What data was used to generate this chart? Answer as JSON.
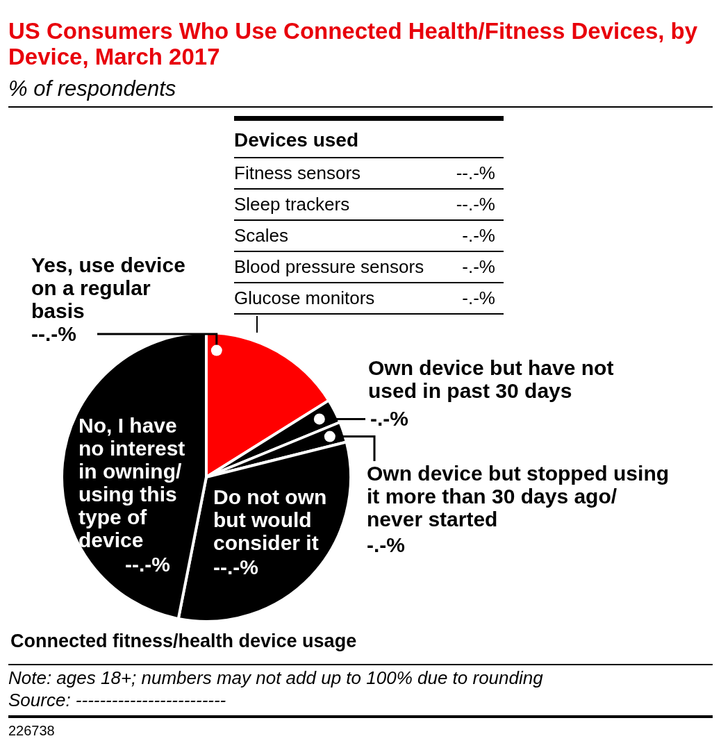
{
  "chart_data": [
    {
      "type": "pie",
      "title": "US Consumers Who Use Connected Health/Fitness Devices, by Device, March 2017",
      "subtitle": "% of respondents",
      "xlabel": "Connected fitness/health device usage",
      "categories": [
        "Yes, use device on a regular basis",
        "Own device but have not used in past 30 days",
        "Own device but stopped using it more than 30 days ago/ never started",
        "Do not own but would consider it",
        "No, I have no interest in owning/ using this type of device"
      ],
      "values": [
        16.1,
        2.7,
        2.3,
        32.0,
        46.9
      ],
      "colors": [
        "#ff0000",
        "#000000",
        "#000000",
        "#000000",
        "#000000"
      ],
      "value_labels": [
        "--.-%",
        "-.-%",
        "-.-%",
        "--.-%",
        "--.-%"
      ],
      "annotations": [
        "Note: ages 18+; numbers may not add up to 100% due to rounding",
        "Source: -------------------------",
        "226738"
      ]
    },
    {
      "type": "other",
      "title": "Devices used",
      "categories": [
        "Fitness sensors",
        "Sleep trackers",
        "Scales",
        "Blood pressure sensors",
        "Glucose monitors"
      ],
      "value_labels": [
        "--.-%",
        "--.-%",
        "-.-%",
        "-.-%",
        "-.-%"
      ]
    }
  ]
}
